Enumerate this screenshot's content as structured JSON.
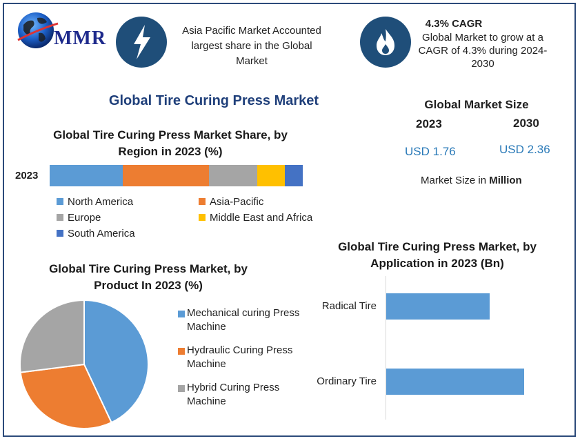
{
  "brand": {
    "logo_text": "MMR"
  },
  "highlights": [
    {
      "icon": "lightning-bolt-icon",
      "text": [
        "Asia Pacific Market Accounted",
        "largest share in the Global",
        "Market"
      ]
    },
    {
      "icon": "flame-icon",
      "heading": "4.3% CAGR",
      "text": [
        "Global Market to grow at a",
        "CAGR of 4.3% during 2024-",
        "2030"
      ]
    }
  ],
  "main_title": "Global Tire Curing Press Market",
  "market_size": {
    "title": "Global Market Size",
    "years": [
      "2023",
      "2030"
    ],
    "values": [
      "USD 1.76",
      "USD 2.36"
    ],
    "note_prefix": "Market Size in ",
    "note_unit": "Million"
  },
  "colors": {
    "north_america": "#5b9bd5",
    "asia_pacific": "#ed7d31",
    "europe": "#a5a5a5",
    "middle_east_africa": "#ffc000",
    "south_america": "#4472c4",
    "dark_blue": "#1f4e79"
  },
  "chart_data": [
    {
      "type": "bar",
      "orientation": "horizontal-stacked",
      "title": [
        "Global Tire Curing Press Market Share, by",
        "Region in 2023 (%)"
      ],
      "categories": [
        "2023"
      ],
      "series": [
        {
          "name": "North America",
          "values": [
            29
          ],
          "color": "#5b9bd5"
        },
        {
          "name": "Asia-Pacific",
          "values": [
            34
          ],
          "color": "#ed7d31"
        },
        {
          "name": "Europe",
          "values": [
            19
          ],
          "color": "#a5a5a5"
        },
        {
          "name": "Middle East and Africa",
          "values": [
            11
          ],
          "color": "#ffc000"
        },
        {
          "name": "South America",
          "values": [
            7
          ],
          "color": "#4472c4"
        }
      ],
      "legend": "bottom"
    },
    {
      "type": "pie",
      "title": [
        "Global Tire Curing Press Market, by",
        "Product In 2023 (%)"
      ],
      "slices": [
        {
          "name": [
            "Mechanical curing Press",
            "Machine"
          ],
          "value": 43,
          "color": "#5b9bd5"
        },
        {
          "name": [
            "Hydraulic Curing Press",
            "Machine"
          ],
          "value": 30,
          "color": "#ed7d31"
        },
        {
          "name": [
            "Hybrid Curing Press",
            "Machine"
          ],
          "value": 27,
          "color": "#a5a5a5"
        }
      ],
      "legend": "right"
    },
    {
      "type": "bar",
      "orientation": "horizontal",
      "title": [
        "Global Tire Curing Press Market, by",
        "Application in 2023 (Bn)"
      ],
      "categories": [
        "Radical Tire",
        "Ordinary Tire"
      ],
      "values": [
        0.6,
        0.8
      ],
      "color": "#5b9bd5",
      "xlim": [
        0,
        1
      ]
    }
  ]
}
